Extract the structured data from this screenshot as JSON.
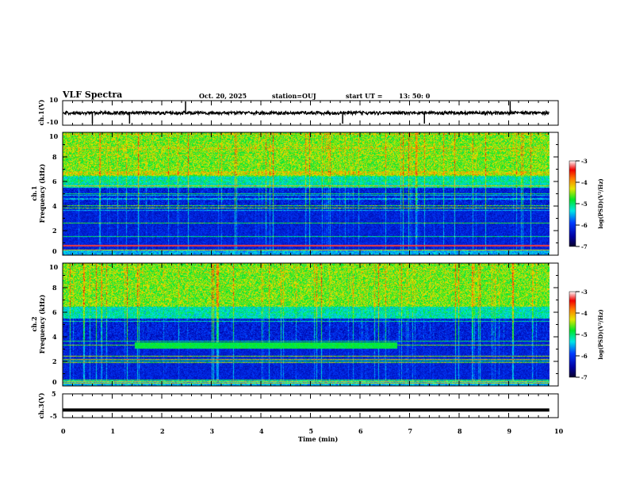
{
  "header": {
    "title": "VLF Spectra",
    "date": "Oct. 20, 2025",
    "station": "station=OUJ",
    "start_label": "start  UT =",
    "start_time": "13: 50: 0"
  },
  "chart_data": [
    {
      "type": "line",
      "name": "ch1-waveform",
      "ylabel": "ch.1(V)",
      "ylim": [
        -10,
        10
      ],
      "yticks": [
        "10",
        "-10"
      ],
      "baseline": 0,
      "description_values": {
        "typical_level": 0,
        "spike_times_min": [
          0.6,
          1.35,
          2.48,
          5.65,
          7.3,
          9.03
        ]
      }
    },
    {
      "type": "heatmap",
      "name": "ch1-spectrogram",
      "ylabel_line1": "ch.1",
      "ylabel_line2": "Frequency (kHz)",
      "ylim": [
        0,
        10
      ],
      "yticks": [
        "0",
        "2",
        "4",
        "6",
        "8",
        "10"
      ],
      "xlim": [
        0,
        10
      ],
      "colorbar": {
        "label": "log(PSD)(V²/Hz)",
        "range": [
          -7,
          -3
        ],
        "ticks": [
          "-3",
          "-4",
          "-5",
          "-6",
          "-7"
        ]
      }
    },
    {
      "type": "heatmap",
      "name": "ch2-spectrogram",
      "ylabel_line1": "ch.2",
      "ylabel_line2": "Frequency (kHz)",
      "ylim": [
        0,
        10
      ],
      "yticks": [
        "0",
        "2",
        "4",
        "6",
        "8",
        "10"
      ],
      "xlim": [
        0,
        10
      ],
      "band": {
        "freq_khz": 3.3,
        "start_min": 1.45,
        "end_min": 6.75
      },
      "colorbar": {
        "label": "log(PSD)(V²/Hz)",
        "range": [
          -7,
          -3
        ],
        "ticks": [
          "-3",
          "-4",
          "-5",
          "-6",
          "-7"
        ]
      }
    },
    {
      "type": "line",
      "name": "ch3-waveform",
      "ylabel": "ch.3(V)",
      "ylim": [
        -5,
        5
      ],
      "yticks": [
        "5",
        "-5"
      ],
      "constant_value": -1.8
    },
    {
      "xlabel": "Time (min)",
      "xticks": [
        "0",
        "1",
        "2",
        "3",
        "4",
        "5",
        "6",
        "7",
        "8",
        "9",
        "10"
      ],
      "xlim": [
        0,
        10
      ],
      "data_end_min": 9.82
    }
  ]
}
